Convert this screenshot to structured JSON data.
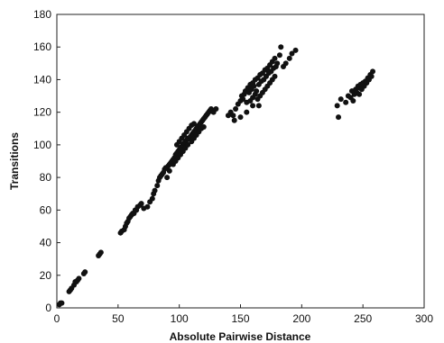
{
  "chart_data": {
    "type": "scatter",
    "title": "",
    "xlabel": "Absolute Pairwise Distance",
    "ylabel": "Transitions",
    "xlim": [
      0,
      300
    ],
    "ylim": [
      0,
      180
    ],
    "xticks": [
      "0",
      "50",
      "100",
      "150",
      "200",
      "250",
      "300"
    ],
    "yticks": [
      "0",
      "20",
      "40",
      "60",
      "80",
      "100",
      "120",
      "140",
      "160",
      "180"
    ],
    "grid": false,
    "legend": "none",
    "marker_color": "#111111",
    "series": [
      {
        "points": [
          [
            2,
            2
          ],
          [
            3,
            3
          ],
          [
            4,
            3
          ],
          [
            10,
            10
          ],
          [
            11,
            11
          ],
          [
            12,
            12
          ],
          [
            14,
            14
          ],
          [
            15,
            16
          ],
          [
            16,
            16
          ],
          [
            17,
            17
          ],
          [
            18,
            18
          ],
          [
            22,
            21
          ],
          [
            23,
            22
          ],
          [
            34,
            32
          ],
          [
            35,
            33
          ],
          [
            36,
            34
          ],
          [
            52,
            46
          ],
          [
            53,
            47
          ],
          [
            55,
            48
          ],
          [
            56,
            50
          ],
          [
            57,
            52
          ],
          [
            58,
            53
          ],
          [
            59,
            55
          ],
          [
            60,
            56
          ],
          [
            61,
            57
          ],
          [
            62,
            58
          ],
          [
            63,
            58
          ],
          [
            64,
            60
          ],
          [
            65,
            60
          ],
          [
            66,
            62
          ],
          [
            68,
            63
          ],
          [
            69,
            64
          ],
          [
            71,
            61
          ],
          [
            74,
            62
          ],
          [
            76,
            65
          ],
          [
            78,
            67
          ],
          [
            79,
            70
          ],
          [
            80,
            72
          ],
          [
            82,
            75
          ],
          [
            83,
            78
          ],
          [
            84,
            80
          ],
          [
            85,
            81
          ],
          [
            86,
            82
          ],
          [
            87,
            83
          ],
          [
            88,
            85
          ],
          [
            89,
            86
          ],
          [
            90,
            86
          ],
          [
            91,
            87
          ],
          [
            92,
            88
          ],
          [
            93,
            89
          ],
          [
            94,
            90
          ],
          [
            95,
            91
          ],
          [
            96,
            92
          ],
          [
            97,
            94
          ],
          [
            98,
            95
          ],
          [
            99,
            96
          ],
          [
            100,
            97
          ],
          [
            101,
            98
          ],
          [
            102,
            99
          ],
          [
            103,
            100
          ],
          [
            104,
            101
          ],
          [
            105,
            102
          ],
          [
            106,
            103
          ],
          [
            107,
            104
          ],
          [
            108,
            104
          ],
          [
            109,
            105
          ],
          [
            110,
            106
          ],
          [
            111,
            107
          ],
          [
            112,
            108
          ],
          [
            113,
            109
          ],
          [
            114,
            110
          ],
          [
            115,
            111
          ],
          [
            116,
            112
          ],
          [
            117,
            113
          ],
          [
            118,
            114
          ],
          [
            119,
            115
          ],
          [
            120,
            116
          ],
          [
            121,
            117
          ],
          [
            122,
            118
          ],
          [
            123,
            119
          ],
          [
            124,
            120
          ],
          [
            125,
            121
          ],
          [
            126,
            122
          ],
          [
            128,
            120
          ],
          [
            130,
            122
          ],
          [
            90,
            80
          ],
          [
            92,
            84
          ],
          [
            95,
            88
          ],
          [
            97,
            90
          ],
          [
            99,
            92
          ],
          [
            101,
            94
          ],
          [
            103,
            96
          ],
          [
            105,
            98
          ],
          [
            107,
            100
          ],
          [
            110,
            102
          ],
          [
            112,
            104
          ],
          [
            114,
            106
          ],
          [
            116,
            108
          ],
          [
            118,
            110
          ],
          [
            120,
            111
          ],
          [
            98,
            100
          ],
          [
            100,
            102
          ],
          [
            102,
            104
          ],
          [
            104,
            106
          ],
          [
            106,
            108
          ],
          [
            108,
            110
          ],
          [
            110,
            112
          ],
          [
            112,
            113
          ],
          [
            140,
            118
          ],
          [
            142,
            120
          ],
          [
            144,
            118
          ],
          [
            146,
            122
          ],
          [
            148,
            125
          ],
          [
            150,
            127
          ],
          [
            151,
            130
          ],
          [
            152,
            128
          ],
          [
            153,
            131
          ],
          [
            154,
            133
          ],
          [
            155,
            126
          ],
          [
            156,
            135
          ],
          [
            157,
            132
          ],
          [
            158,
            137
          ],
          [
            159,
            134
          ],
          [
            160,
            138
          ],
          [
            161,
            136
          ],
          [
            162,
            140
          ],
          [
            163,
            133
          ],
          [
            164,
            141
          ],
          [
            165,
            137
          ],
          [
            166,
            143
          ],
          [
            167,
            139
          ],
          [
            168,
            144
          ],
          [
            169,
            140
          ],
          [
            170,
            146
          ],
          [
            171,
            142
          ],
          [
            172,
            147
          ],
          [
            173,
            144
          ],
          [
            174,
            149
          ],
          [
            175,
            145
          ],
          [
            176,
            151
          ],
          [
            177,
            147
          ],
          [
            178,
            153
          ],
          [
            179,
            148
          ],
          [
            180,
            150
          ],
          [
            182,
            155
          ],
          [
            183,
            160
          ],
          [
            185,
            148
          ],
          [
            187,
            150
          ],
          [
            190,
            153
          ],
          [
            192,
            156
          ],
          [
            195,
            158
          ],
          [
            158,
            127
          ],
          [
            160,
            129
          ],
          [
            162,
            131
          ],
          [
            164,
            128
          ],
          [
            166,
            130
          ],
          [
            168,
            132
          ],
          [
            170,
            134
          ],
          [
            172,
            136
          ],
          [
            174,
            138
          ],
          [
            176,
            140
          ],
          [
            178,
            142
          ],
          [
            165,
            124
          ],
          [
            160,
            124
          ],
          [
            155,
            120
          ],
          [
            145,
            115
          ],
          [
            150,
            117
          ],
          [
            229,
            124
          ],
          [
            230,
            117
          ],
          [
            232,
            128
          ],
          [
            236,
            126
          ],
          [
            238,
            130
          ],
          [
            240,
            129
          ],
          [
            241,
            133
          ],
          [
            243,
            131
          ],
          [
            244,
            134
          ],
          [
            245,
            132
          ],
          [
            246,
            136
          ],
          [
            247,
            135
          ],
          [
            248,
            137
          ],
          [
            249,
            134
          ],
          [
            250,
            138
          ],
          [
            251,
            136
          ],
          [
            252,
            139
          ],
          [
            253,
            138
          ],
          [
            254,
            141
          ],
          [
            255,
            140
          ],
          [
            256,
            143
          ],
          [
            257,
            142
          ],
          [
            258,
            145
          ],
          [
            242,
            127
          ],
          [
            247,
            131
          ]
        ]
      }
    ]
  }
}
